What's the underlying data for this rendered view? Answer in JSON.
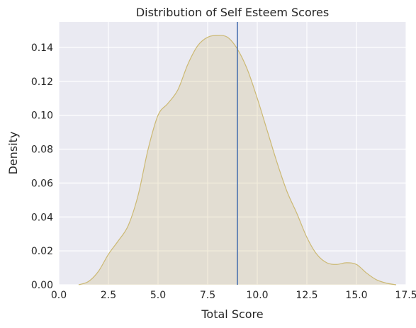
{
  "chart_data": {
    "type": "area",
    "title": "Distribution of Self Esteem Scores",
    "xlabel": "Total Score",
    "ylabel": "Density",
    "xlim": [
      0.0,
      17.5
    ],
    "ylim": [
      0.0,
      0.155
    ],
    "xticks": [
      "0.0",
      "2.5",
      "5.0",
      "7.5",
      "10.0",
      "12.5",
      "15.0",
      "17.5"
    ],
    "yticks": [
      "0.00",
      "0.02",
      "0.04",
      "0.06",
      "0.08",
      "0.10",
      "0.12",
      "0.14"
    ],
    "grid": true,
    "series": [
      {
        "kind": "kde",
        "color": "#ccb974",
        "fill_color": "#ccb974",
        "fill_opacity": 0.25,
        "x": [
          1.0,
          1.5,
          2.0,
          2.5,
          3.0,
          3.5,
          4.0,
          4.5,
          5.0,
          5.5,
          6.0,
          6.5,
          7.0,
          7.5,
          8.0,
          8.5,
          9.0,
          9.5,
          10.0,
          10.5,
          11.0,
          11.5,
          12.0,
          12.5,
          13.0,
          13.5,
          14.0,
          14.5,
          15.0,
          15.5,
          16.0,
          16.5,
          17.0
        ],
        "y": [
          0.0,
          0.002,
          0.008,
          0.018,
          0.026,
          0.035,
          0.053,
          0.08,
          0.1,
          0.107,
          0.115,
          0.13,
          0.141,
          0.146,
          0.147,
          0.146,
          0.139,
          0.127,
          0.11,
          0.091,
          0.072,
          0.055,
          0.042,
          0.028,
          0.018,
          0.013,
          0.012,
          0.013,
          0.012,
          0.007,
          0.003,
          0.001,
          0.0
        ]
      }
    ],
    "vlines": [
      {
        "x": 9.0,
        "color": "#4c72b0"
      }
    ]
  }
}
